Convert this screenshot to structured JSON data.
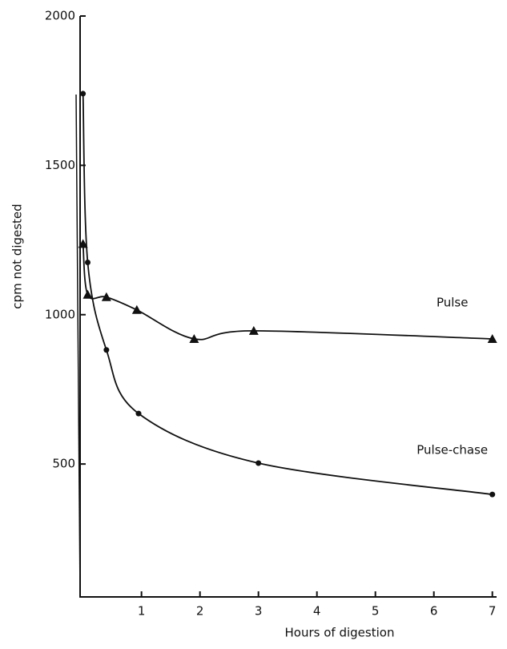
{
  "chart_data": {
    "type": "line",
    "xlabel": "Hours of digestion",
    "ylabel": "cpm not digested",
    "xlim": [
      -0.05,
      7.1
    ],
    "ylim": [
      55,
      2000
    ],
    "xticks": [
      1,
      2,
      3,
      4,
      5,
      6,
      7
    ],
    "yticks": [
      500,
      1000,
      1500,
      2000
    ],
    "series": [
      {
        "name": "Pulse",
        "color": "#111111",
        "marker": "triangle",
        "x": [
          0,
          0.08,
          0.4,
          0.92,
          1.9,
          2.92,
          7
        ],
        "values": [
          1237,
          1067,
          1059,
          1016,
          919,
          946,
          919
        ]
      },
      {
        "name": "Pulse-chase",
        "color": "#111111",
        "marker": "circle",
        "x": [
          0,
          0.08,
          0.4,
          0.95,
          3,
          7
        ],
        "values": [
          1740,
          1175,
          882,
          669,
          503,
          398
        ]
      }
    ]
  }
}
